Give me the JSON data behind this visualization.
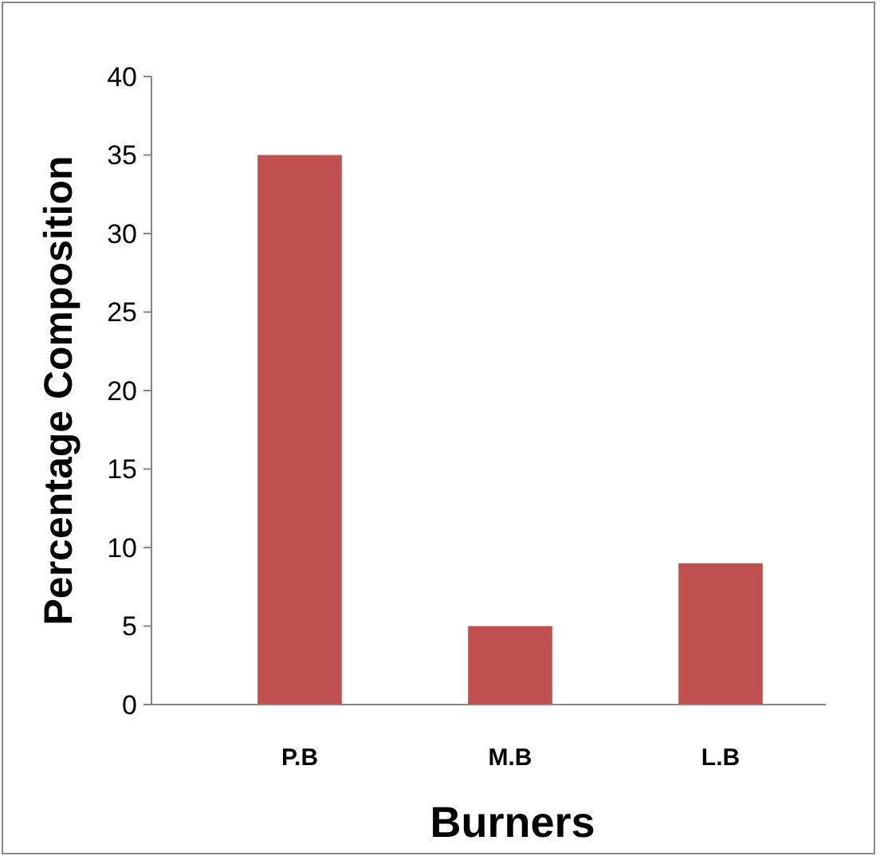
{
  "chart_data": {
    "type": "bar",
    "xlabel": "Burners",
    "ylabel": "Percentage Composition",
    "categories": [
      "P.B",
      "M.B",
      "L.B"
    ],
    "values": [
      35,
      5,
      9
    ],
    "color": "#c0504d",
    "ylim": [
      0,
      40
    ],
    "yticks": [
      0,
      5,
      10,
      15,
      20,
      25,
      30,
      35,
      40
    ]
  }
}
